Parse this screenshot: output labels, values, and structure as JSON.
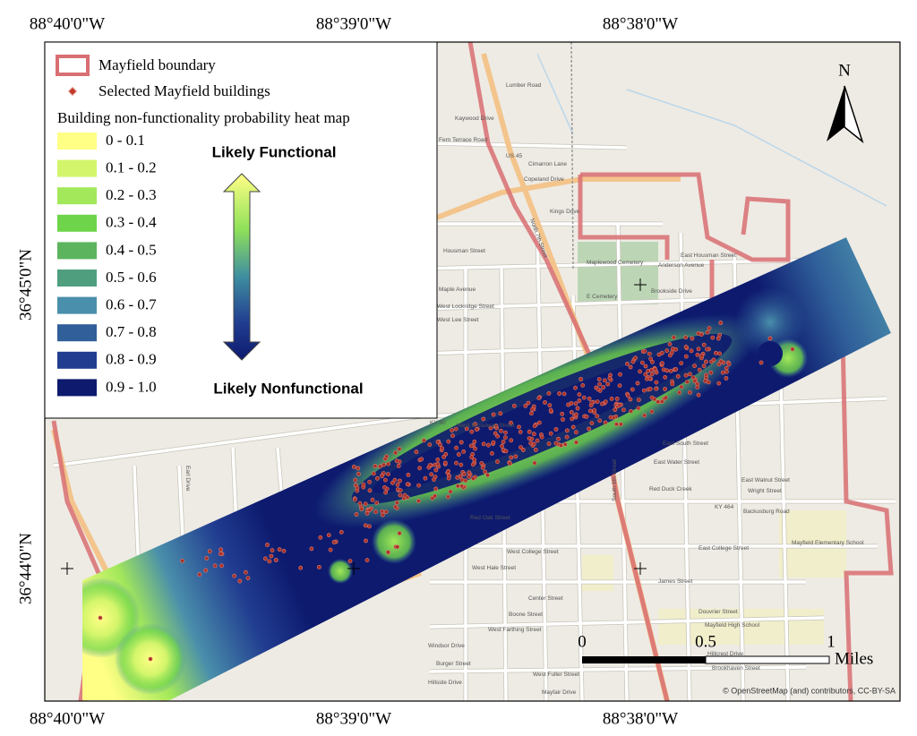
{
  "coordinates": {
    "top": [
      "88°40'0\"W",
      "88°39'0\"W",
      "88°38'0\"W"
    ],
    "bottom": [
      "88°40'0\"W",
      "88°39'0\"W",
      "88°38'0\"W"
    ],
    "left": [
      "36°45'0\"N",
      "36°44'0\"N"
    ]
  },
  "legend": {
    "boundary": "Mayfield boundary",
    "buildings": "Selected Mayfield buildings",
    "heat_map_title": "Building non-functionality probability heat map",
    "classes": [
      {
        "label": "0 - 0.1",
        "color": "#ffff85"
      },
      {
        "label": "0.1 - 0.2",
        "color": "#d3f56b"
      },
      {
        "label": "0.2 - 0.3",
        "color": "#a3e85a"
      },
      {
        "label": "0.3 - 0.4",
        "color": "#6ed54a"
      },
      {
        "label": "0.4 - 0.5",
        "color": "#5cb55e"
      },
      {
        "label": "0.5 - 0.6",
        "color": "#4f9f7f"
      },
      {
        "label": "0.6 - 0.7",
        "color": "#4a8fab"
      },
      {
        "label": "0.7 - 0.8",
        "color": "#305f9a"
      },
      {
        "label": "0.8 - 0.9",
        "color": "#213d90"
      },
      {
        "label": "0.9 - 1.0",
        "color": "#0d1a6e"
      }
    ],
    "arrow_top": "Likely Functional",
    "arrow_bottom": "Likely Nonfunctional"
  },
  "north": "N",
  "scale_bar": {
    "labels": [
      "0",
      "0.5",
      "1"
    ],
    "unit": "Miles"
  },
  "attribution": "© OpenStreetMap (and) contributors, CC-BY-SA",
  "streets": [
    "Lumber Road",
    "Kaywood Drive",
    "Fern Terrace Road",
    "US 45",
    "Cimarron Lane",
    "Copeland Drive",
    "Kings Drive",
    "Housman Street",
    "Maplewood Cemetery",
    "Anderson Avenue",
    "East Housman Street",
    "E Cemetery",
    "Brookside Drive",
    "Maple Avenue",
    "West Lockridge Street",
    "West Lee Street",
    "KY 80",
    "West Broadway Street",
    "East South Street",
    "East Water Street",
    "East Walnut Street",
    "Wright Street",
    "Red Duck Creek",
    "KY 464",
    "Backusburg Road",
    "Mayfield Elementary School",
    "West College Street",
    "West Hale Street",
    "Center Street",
    "Boone Street",
    "West Farthing Street",
    "Windsor Drive",
    "Burger Street",
    "Hillside Drive",
    "West Fuller Street",
    "Mayfair Drive",
    "Brookhaven Street",
    "Hillcrest Drive",
    "Douvrier Street",
    "Mayfield High School",
    "James Street",
    "East College Street",
    "North 7th Street",
    "South 6th Street",
    "Red Oak Street",
    "Earl Drive"
  ]
}
